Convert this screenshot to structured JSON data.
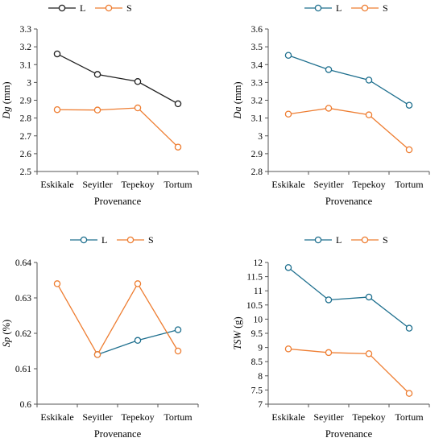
{
  "figure": {
    "charts": [
      {
        "id": "dg",
        "type": "line",
        "categories": [
          "Eskikale",
          "Seyitler",
          "Tepekoy",
          "Tortum"
        ],
        "xlabel": "Provenance",
        "ylabel_main": "Dg",
        "ylabel_unit": " (mm)",
        "ylim": [
          2.5,
          3.3
        ],
        "yticks": [
          2.5,
          2.6,
          2.7,
          2.8,
          2.9,
          3.0,
          3.1,
          3.2,
          3.3
        ],
        "ytick_labels": [
          "2.5",
          "2.6",
          "2.7",
          "2.8",
          "2.9",
          "3",
          "3.1",
          "3.2",
          "3.3"
        ],
        "series": [
          {
            "name": "L",
            "color": "#1f1f1f",
            "values": [
              3.16,
              3.045,
              3.005,
              2.88
            ]
          },
          {
            "name": "S",
            "color": "#ee7d31",
            "values": [
              2.847,
              2.845,
              2.857,
              2.637
            ]
          }
        ]
      },
      {
        "id": "da",
        "type": "line",
        "categories": [
          "Eskikale",
          "Seyitler",
          "Tepekoy",
          "Tortum"
        ],
        "xlabel": "Provenance",
        "ylabel_main": "Da",
        "ylabel_unit": " (mm)",
        "ylim": [
          2.8,
          3.6
        ],
        "yticks": [
          2.8,
          2.9,
          3.0,
          3.1,
          3.2,
          3.3,
          3.4,
          3.5,
          3.6
        ],
        "ytick_labels": [
          "2.8",
          "2.9",
          "3",
          "3.1",
          "3.2",
          "3.3",
          "3.4",
          "3.5",
          "3.6"
        ],
        "series": [
          {
            "name": "L",
            "color": "#1e6f8e",
            "values": [
              3.452,
              3.372,
              3.313,
              3.172
            ]
          },
          {
            "name": "S",
            "color": "#ee7d31",
            "values": [
              3.122,
              3.155,
              3.118,
              2.922
            ]
          }
        ]
      },
      {
        "id": "sp",
        "type": "line",
        "categories": [
          "Eskikale",
          "Seyitler",
          "Tepekoy",
          "Tortum"
        ],
        "xlabel": "Provenance",
        "ylabel_main": "Sp",
        "ylabel_unit": " (%)",
        "ylim": [
          0.6,
          0.64
        ],
        "yticks": [
          0.6,
          0.61,
          0.62,
          0.63,
          0.64
        ],
        "ytick_labels": [
          "0.6",
          "0.61",
          "0.62",
          "0.63",
          "0.64"
        ],
        "series": [
          {
            "name": "L",
            "color": "#1e6f8e",
            "values": [
              null,
              0.614,
              0.618,
              0.621
            ]
          },
          {
            "name": "S",
            "color": "#ee7d31",
            "values": [
              0.634,
              0.614,
              0.634,
              0.615
            ]
          }
        ]
      },
      {
        "id": "tsw",
        "type": "line",
        "categories": [
          "Eskikale",
          "Seyitler",
          "Tepekoy",
          "Tortum"
        ],
        "xlabel": "Provenance",
        "ylabel_main": "TSW",
        "ylabel_unit": " (g)",
        "ylim": [
          7,
          12
        ],
        "yticks": [
          7,
          7.5,
          8,
          8.5,
          9,
          9.5,
          10,
          10.5,
          11,
          11.5,
          12
        ],
        "ytick_labels": [
          "7",
          "7.5",
          "8",
          "8.5",
          "9",
          "9.5",
          "10",
          "10.5",
          "11",
          "11.5",
          "12"
        ],
        "series": [
          {
            "name": "L",
            "color": "#1e6f8e",
            "values": [
              11.82,
              10.68,
              10.78,
              9.68
            ]
          },
          {
            "name": "S",
            "color": "#ee7d31",
            "values": [
              8.95,
              8.82,
              8.78,
              7.38
            ]
          }
        ]
      }
    ]
  }
}
